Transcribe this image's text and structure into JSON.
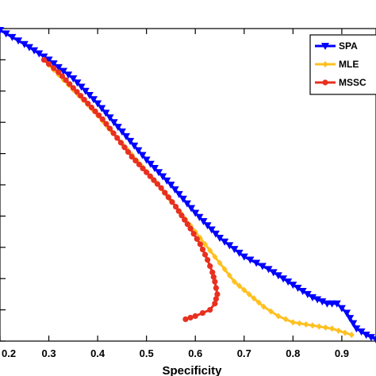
{
  "chart_data": {
    "type": "line",
    "title": "",
    "xlabel": "Specificity",
    "ylabel": "",
    "xlim": [
      0.2,
      0.97
    ],
    "ylim": [
      0.0,
      1.0
    ],
    "xticks": [
      "0.2",
      "0.3",
      "0.4",
      "0.5",
      "0.6",
      "0.7",
      "0.8",
      "0.9"
    ],
    "grid": false,
    "legend_position": "top-right",
    "series": [
      {
        "name": "SPA",
        "color": "#0000ff",
        "marker": "triangle-down",
        "x": [
          0.2,
          0.25,
          0.3,
          0.35,
          0.4,
          0.45,
          0.5,
          0.55,
          0.6,
          0.65,
          0.7,
          0.75,
          0.8,
          0.84,
          0.87,
          0.89,
          0.91,
          0.93,
          0.95,
          0.97
        ],
        "y": [
          0.995,
          0.95,
          0.9,
          0.84,
          0.76,
          0.67,
          0.58,
          0.5,
          0.41,
          0.33,
          0.27,
          0.23,
          0.18,
          0.14,
          0.12,
          0.12,
          0.09,
          0.04,
          0.02,
          0.005
        ]
      },
      {
        "name": "MLE",
        "color": "#ffc020",
        "marker": "diamond",
        "x": [
          0.29,
          0.34,
          0.39,
          0.44,
          0.49,
          0.54,
          0.58,
          0.62,
          0.65,
          0.68,
          0.71,
          0.74,
          0.77,
          0.8,
          0.84,
          0.88,
          0.92
        ],
        "y": [
          0.9,
          0.82,
          0.74,
          0.65,
          0.56,
          0.47,
          0.39,
          0.31,
          0.25,
          0.19,
          0.15,
          0.11,
          0.08,
          0.06,
          0.05,
          0.04,
          0.02
        ]
      },
      {
        "name": "MSSC",
        "color": "#e83020",
        "marker": "circle",
        "x": [
          0.29,
          0.32,
          0.35,
          0.38,
          0.41,
          0.44,
          0.47,
          0.5,
          0.53,
          0.56,
          0.59,
          0.61,
          0.625,
          0.635,
          0.64,
          0.645,
          0.64,
          0.63,
          0.615,
          0.6,
          0.58
        ],
        "y": [
          0.9,
          0.86,
          0.81,
          0.76,
          0.71,
          0.65,
          0.59,
          0.54,
          0.49,
          0.43,
          0.36,
          0.31,
          0.26,
          0.22,
          0.19,
          0.15,
          0.12,
          0.1,
          0.09,
          0.08,
          0.07
        ]
      }
    ]
  }
}
